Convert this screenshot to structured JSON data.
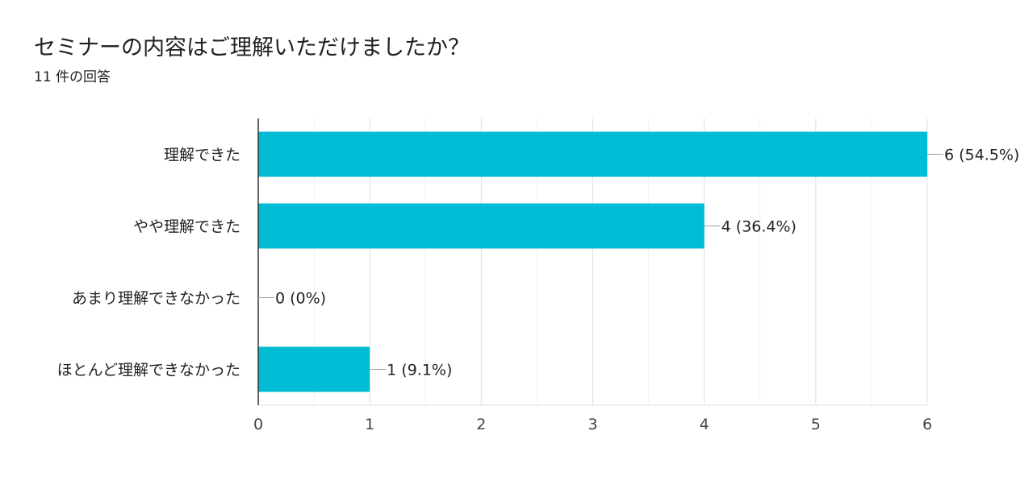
{
  "header": {
    "title": "セミナーの内容はご理解いただけましたか？",
    "response_count": "11 件の回答"
  },
  "colors": {
    "bar": "#00BCD4",
    "grid": "#e8e8e8",
    "axis": "#333333",
    "text": "#222222",
    "leader": "#9e9e9e"
  },
  "chart_data": {
    "type": "bar",
    "orientation": "horizontal",
    "title": "セミナーの内容はご理解いただけましたか？",
    "subtitle": "11 件の回答",
    "categories": [
      "理解できた",
      "やや理解できた",
      "あまり理解できなかった",
      "ほとんど理解できなかった"
    ],
    "values": [
      6,
      4,
      0,
      1
    ],
    "data_labels": [
      "6 (54.5%)",
      "4 (36.4%)",
      "0 (0%)",
      "1 (9.1%)"
    ],
    "x_ticks": [
      "0",
      "1",
      "2",
      "3",
      "4",
      "5",
      "6"
    ],
    "xlim": [
      0,
      6
    ],
    "grid": true,
    "legend": "none"
  }
}
